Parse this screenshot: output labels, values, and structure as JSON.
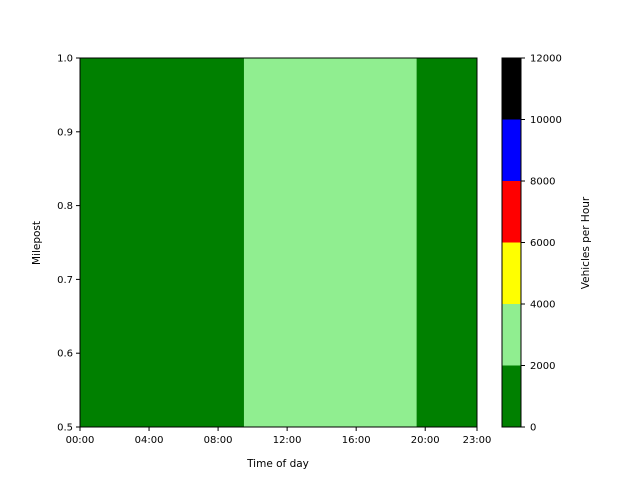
{
  "chart_data": {
    "type": "heatmap",
    "title": "",
    "xlabel": "Time of day",
    "ylabel": "Milepost",
    "xlim": [
      "00:00",
      "23:00"
    ],
    "ylim": [
      0.5,
      1.0
    ],
    "x_ticks": [
      "00:00",
      "04:00",
      "08:00",
      "12:00",
      "16:00",
      "20:00",
      "23:00"
    ],
    "y_ticks": [
      "0.5",
      "0.6",
      "0.7",
      "0.8",
      "0.9",
      "1.0"
    ],
    "grid": false,
    "regions": [
      {
        "start": "00:00",
        "end": "09:30",
        "vehicles_per_hour": 1000,
        "color": "#008000"
      },
      {
        "start": "09:30",
        "end": "19:30",
        "vehicles_per_hour": 3000,
        "color": "#90ee90"
      },
      {
        "start": "19:30",
        "end": "23:00",
        "vehicles_per_hour": 1000,
        "color": "#008000"
      }
    ],
    "colorbar": {
      "label": "Vehicles per Hour",
      "ticks": [
        "0",
        "2000",
        "4000",
        "6000",
        "8000",
        "10000",
        "12000"
      ],
      "levels": [
        0,
        2000,
        4000,
        6000,
        8000,
        10000,
        12000
      ],
      "colors": [
        "#008000",
        "#90ee90",
        "#ffff00",
        "#ff0000",
        "#0000ff",
        "#000000"
      ]
    }
  }
}
